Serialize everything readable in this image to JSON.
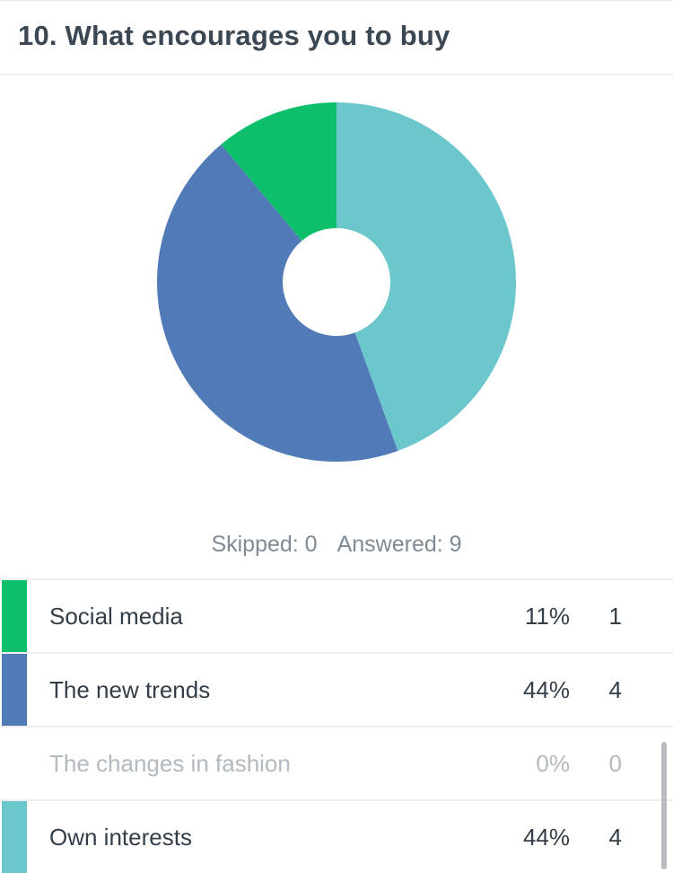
{
  "question": {
    "title": "10. What encourages you to buy"
  },
  "summary": {
    "skipped": "Skipped: 0",
    "answered": "Answered: 9"
  },
  "chart_data": {
    "type": "pie",
    "donut": true,
    "start": "12 o'clock, clockwise",
    "categories": [
      "Own interests",
      "The new trends",
      "The changes in fashion",
      "Social media"
    ],
    "values": [
      4,
      4,
      0,
      1
    ],
    "percent_labels": [
      "44%",
      "44%",
      "0%",
      "11%"
    ],
    "colors": [
      "#6cc7cd",
      "#517bb7",
      "#d9dde0",
      "#0dbf6b"
    ]
  },
  "table": {
    "rows": [
      {
        "label": "Social media",
        "percent": "11%",
        "count": "1",
        "color": "#0dbf6b"
      },
      {
        "label": "The new trends",
        "percent": "44%",
        "count": "4",
        "color": "#517bb7"
      },
      {
        "label": "The changes in fashion",
        "percent": "0%",
        "count": "0",
        "color": ""
      },
      {
        "label": "Own interests",
        "percent": "44%",
        "count": "4",
        "color": "#6cc7cd"
      }
    ]
  }
}
